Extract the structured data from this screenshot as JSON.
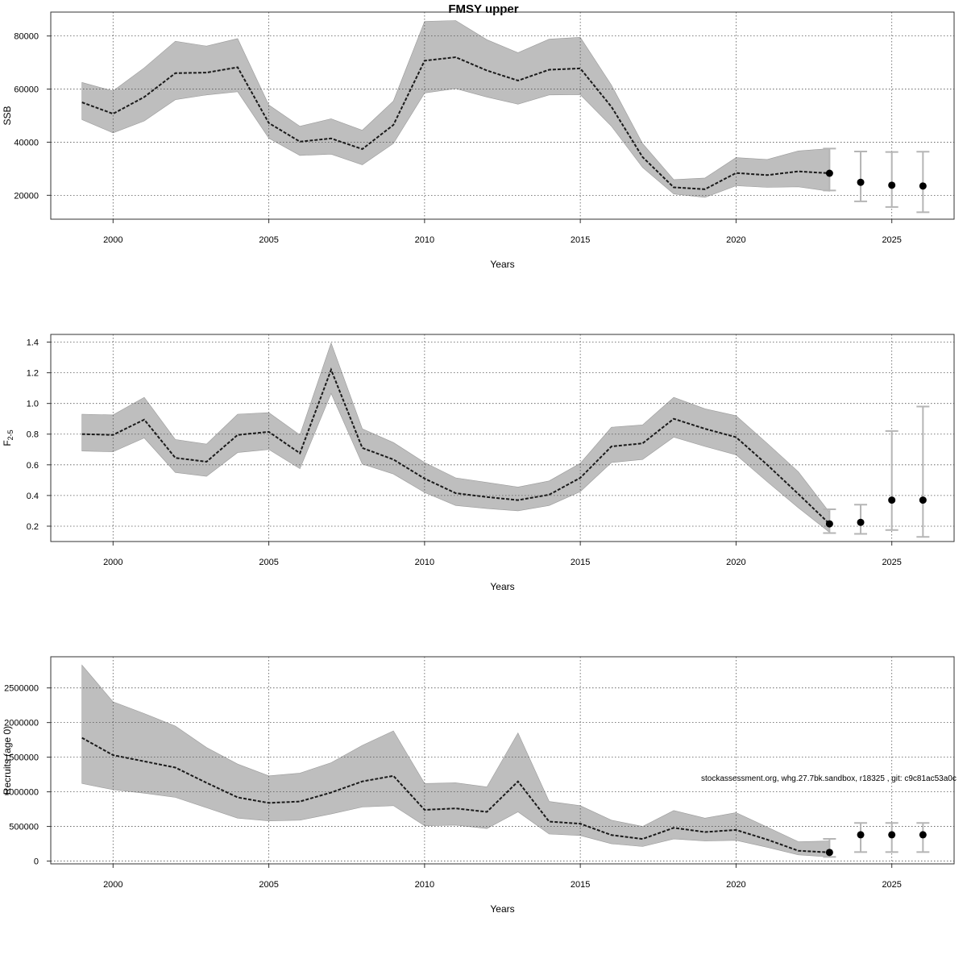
{
  "figure": {
    "title": "FMSY upper",
    "watermark": "stockassessment.org, whg.27.7bk.sandbox, r18325 , git: c9c81ac53a0c"
  },
  "colors": {
    "band": "#bebebe",
    "band_edge": "#9a9a9a",
    "line": "#1a1a1a",
    "point": "#000000",
    "error_bar": "#b5b5b5",
    "grid": "#555555",
    "frame": "#333333"
  },
  "chart_data": [
    {
      "type": "line",
      "title": "FMSY upper",
      "xlabel": "Years",
      "ylabel": "SSB",
      "xlim": [
        1998,
        2027
      ],
      "ylim": [
        11000,
        89000
      ],
      "xticks": [
        2000,
        2005,
        2010,
        2015,
        2020,
        2025
      ],
      "yticks": [
        20000,
        40000,
        60000,
        80000
      ],
      "ytick_labels": [
        "20000",
        "40000",
        "60000",
        "80000"
      ],
      "grid": true,
      "historical": {
        "x": [
          1999,
          2000,
          2001,
          2002,
          2003,
          2004,
          2005,
          2006,
          2007,
          2008,
          2009,
          2010,
          2011,
          2012,
          2013,
          2014,
          2015,
          2016,
          2017,
          2018,
          2019,
          2020,
          2021,
          2022,
          2023
        ],
        "estimate": [
          55000,
          50700,
          57000,
          66000,
          66200,
          68200,
          47200,
          40200,
          41400,
          37400,
          46500,
          70700,
          72000,
          67000,
          63200,
          67300,
          67800,
          53300,
          34400,
          23000,
          22300,
          28400,
          27600,
          29000,
          28300
        ],
        "lower": [
          48500,
          43500,
          48000,
          56000,
          57800,
          59000,
          41500,
          35000,
          35500,
          31500,
          39500,
          58500,
          60200,
          57000,
          54300,
          57800,
          57900,
          46000,
          30500,
          20500,
          19200,
          23600,
          23000,
          23200,
          21500
        ],
        "upper": [
          62500,
          59300,
          68000,
          78000,
          76200,
          79000,
          54000,
          46000,
          48800,
          44500,
          55500,
          85500,
          85800,
          78600,
          73700,
          78800,
          79500,
          61500,
          39500,
          25900,
          26500,
          34200,
          33500,
          36700,
          37600
        ]
      },
      "forecast": {
        "x": [
          2023,
          2024,
          2025,
          2026
        ],
        "median": [
          28300,
          24900,
          23800,
          23500
        ],
        "lower": [
          21800,
          17700,
          15600,
          13600
        ],
        "upper": [
          37600,
          36500,
          36300,
          36400
        ]
      }
    },
    {
      "type": "line",
      "xlabel": "Years",
      "ylabel": "F",
      "ylabel_subscript": "2-5",
      "xlim": [
        1998,
        2027
      ],
      "ylim": [
        0.1,
        1.45
      ],
      "xticks": [
        2000,
        2005,
        2010,
        2015,
        2020,
        2025
      ],
      "yticks": [
        0.2,
        0.4,
        0.6,
        0.8,
        1.0,
        1.2,
        1.4
      ],
      "ytick_labels": [
        "0.2",
        "0.4",
        "0.6",
        "0.8",
        "1.0",
        "1.2",
        "1.4"
      ],
      "grid": true,
      "historical": {
        "x": [
          1999,
          2000,
          2001,
          2002,
          2003,
          2004,
          2005,
          2006,
          2007,
          2008,
          2009,
          2010,
          2011,
          2012,
          2013,
          2014,
          2015,
          2016,
          2017,
          2018,
          2019,
          2020,
          2021,
          2022,
          2023
        ],
        "estimate": [
          0.8,
          0.795,
          0.895,
          0.645,
          0.62,
          0.795,
          0.815,
          0.675,
          1.22,
          0.71,
          0.635,
          0.51,
          0.415,
          0.39,
          0.37,
          0.405,
          0.515,
          0.72,
          0.74,
          0.9,
          0.835,
          0.78,
          0.6,
          0.41,
          0.215
        ],
        "lower": [
          0.69,
          0.685,
          0.775,
          0.55,
          0.525,
          0.68,
          0.7,
          0.575,
          1.065,
          0.605,
          0.54,
          0.42,
          0.335,
          0.315,
          0.3,
          0.335,
          0.425,
          0.615,
          0.635,
          0.78,
          0.72,
          0.665,
          0.49,
          0.32,
          0.16
        ],
        "upper": [
          0.93,
          0.925,
          1.04,
          0.765,
          0.735,
          0.93,
          0.94,
          0.795,
          1.395,
          0.835,
          0.745,
          0.615,
          0.515,
          0.485,
          0.455,
          0.495,
          0.61,
          0.845,
          0.86,
          1.04,
          0.965,
          0.92,
          0.74,
          0.555,
          0.29
        ]
      },
      "forecast": {
        "x": [
          2023,
          2024,
          2025,
          2026
        ],
        "median": [
          0.215,
          0.225,
          0.37,
          0.37
        ],
        "lower": [
          0.155,
          0.15,
          0.175,
          0.13
        ],
        "upper": [
          0.31,
          0.34,
          0.82,
          0.98
        ]
      }
    },
    {
      "type": "line",
      "xlabel": "Years",
      "ylabel": "Recruits (age 0)",
      "xlim": [
        1998,
        2027
      ],
      "ylim": [
        -40000,
        2950000
      ],
      "xticks": [
        2000,
        2005,
        2010,
        2015,
        2020,
        2025
      ],
      "yticks": [
        0,
        500000,
        1000000,
        1500000,
        2000000,
        2500000
      ],
      "ytick_labels": [
        "0",
        "500000",
        "1000000",
        "1500000",
        "2000000",
        "2500000"
      ],
      "grid": true,
      "historical": {
        "x": [
          1999,
          2000,
          2001,
          2002,
          2003,
          2004,
          2005,
          2006,
          2007,
          2008,
          2009,
          2010,
          2011,
          2012,
          2013,
          2014,
          2015,
          2016,
          2017,
          2018,
          2019,
          2020,
          2021,
          2022,
          2023
        ],
        "estimate": [
          1780000,
          1530000,
          1440000,
          1350000,
          1130000,
          920000,
          840000,
          860000,
          990000,
          1150000,
          1230000,
          740000,
          760000,
          710000,
          1150000,
          570000,
          540000,
          375000,
          320000,
          480000,
          420000,
          450000,
          310000,
          150000,
          125000
        ],
        "lower": [
          1120000,
          1030000,
          980000,
          920000,
          770000,
          620000,
          580000,
          590000,
          680000,
          780000,
          800000,
          510000,
          520000,
          470000,
          710000,
          390000,
          370000,
          250000,
          210000,
          320000,
          290000,
          300000,
          200000,
          90000,
          60000
        ],
        "upper": [
          2830000,
          2300000,
          2130000,
          1950000,
          1640000,
          1400000,
          1230000,
          1270000,
          1420000,
          1670000,
          1880000,
          1120000,
          1130000,
          1070000,
          1850000,
          860000,
          800000,
          590000,
          500000,
          730000,
          620000,
          700000,
          490000,
          280000,
          290000
        ]
      },
      "forecast": {
        "x": [
          2023,
          2024,
          2025,
          2026
        ],
        "median": [
          125000,
          380000,
          380000,
          380000
        ],
        "lower": [
          60000,
          130000,
          130000,
          130000
        ],
        "upper": [
          320000,
          550000,
          550000,
          550000
        ]
      }
    }
  ]
}
